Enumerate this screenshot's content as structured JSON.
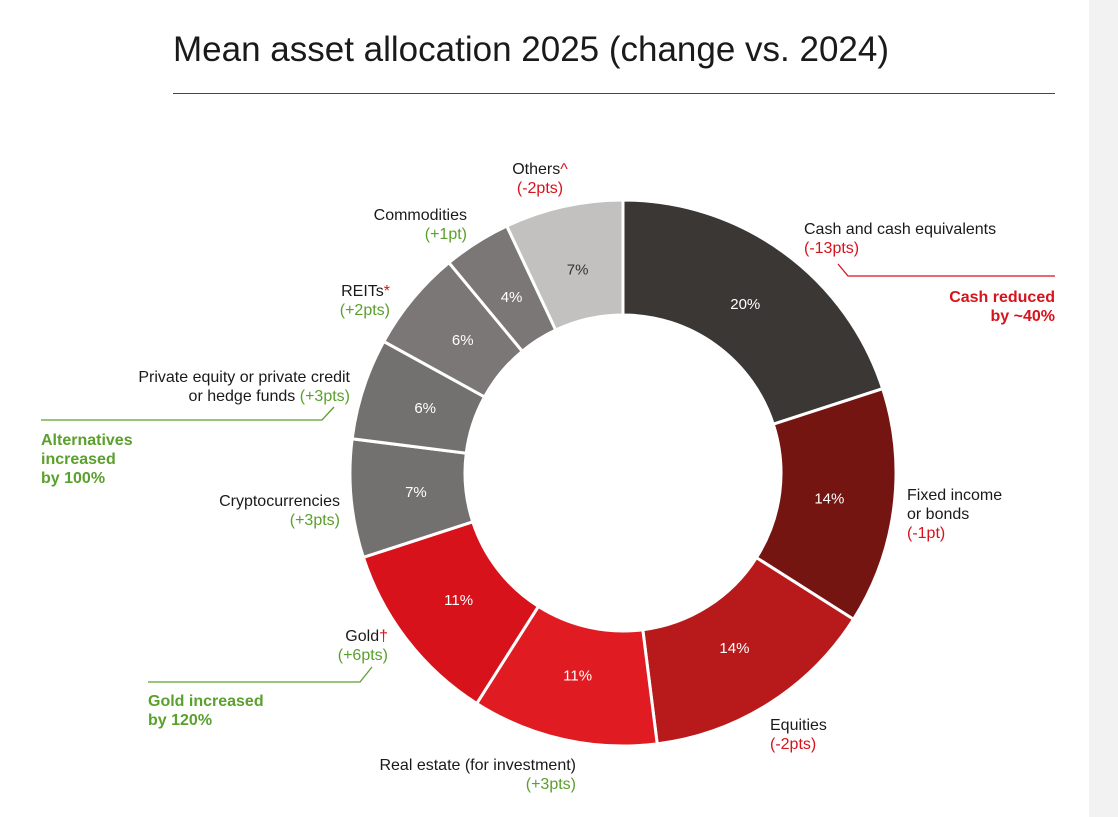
{
  "title": "Mean asset allocation 2025 (change vs. 2024)",
  "colors": {
    "accent_red": "#d8121b",
    "positive_green": "#5aa02c",
    "rule": "#c40d1e"
  },
  "chart_data": {
    "type": "pie",
    "variant": "donut",
    "title": "Mean asset allocation 2025 (change vs. 2024)",
    "value_unit": "%",
    "start": "12 o'clock",
    "direction": "clockwise",
    "slices": [
      {
        "label": "Cash and cash equivalents",
        "marker": "",
        "value": 20,
        "value_label": "20%",
        "change": "(-13pts)",
        "direction": "down",
        "color": "#3b3735",
        "text_color": "#ffffff"
      },
      {
        "label": "Fixed income or bonds",
        "label_lines": [
          "Fixed income",
          "or bonds"
        ],
        "marker": "",
        "value": 14,
        "value_label": "14%",
        "change": "(-1pt)",
        "direction": "down",
        "color": "#741512",
        "text_color": "#ffffff"
      },
      {
        "label": "Equities",
        "marker": "",
        "value": 14,
        "value_label": "14%",
        "change": "(-2pts)",
        "direction": "down",
        "color": "#b81a1b",
        "text_color": "#ffffff"
      },
      {
        "label": "Real estate (for investment)",
        "marker": "",
        "value": 11,
        "value_label": "11%",
        "change": "(+3pts)",
        "direction": "up",
        "color": "#e01b22",
        "text_color": "#ffffff"
      },
      {
        "label": "Gold",
        "marker": "†",
        "value": 11,
        "value_label": "11%",
        "change": "(+6pts)",
        "direction": "up",
        "color": "#d8121b",
        "text_color": "#ffffff"
      },
      {
        "label": "Cryptocurrencies",
        "marker": "",
        "value": 7,
        "value_label": "7%",
        "change": "(+3pts)",
        "direction": "up",
        "color": "#737070",
        "text_color": "#ffffff"
      },
      {
        "label": "Private equity or private credit or hedge funds",
        "label_lines": [
          "Private equity or private credit",
          "or hedge funds"
        ],
        "marker": "",
        "value": 6,
        "value_label": "6%",
        "change": "(+3pts)",
        "direction": "up",
        "color": "#737070",
        "text_color": "#ffffff"
      },
      {
        "label": "REITs",
        "marker": "*",
        "value": 6,
        "value_label": "6%",
        "change": "(+2pts)",
        "direction": "up",
        "color": "#7a7776",
        "text_color": "#ffffff"
      },
      {
        "label": "Commodities",
        "marker": "",
        "value": 4,
        "value_label": "4%",
        "change": "(+1pt)",
        "direction": "up",
        "color": "#7a7776",
        "text_color": "#ffffff"
      },
      {
        "label": "Others",
        "marker": "^",
        "value": 7,
        "value_label": "7%",
        "change": "(-2pts)",
        "direction": "down",
        "color": "#c3c1c0",
        "text_color": "#333333"
      }
    ],
    "annotations": [
      {
        "lines": [
          "Cash reduced",
          "by ~40%"
        ],
        "color": "red",
        "refers_to": "Cash and cash equivalents"
      },
      {
        "lines": [
          "Alternatives",
          "increased",
          "by 100%"
        ],
        "color": "green",
        "refers_to": "Private equity or private credit or hedge funds"
      },
      {
        "lines": [
          "Gold increased",
          "by 120%"
        ],
        "color": "green",
        "refers_to": "Gold"
      }
    ]
  }
}
